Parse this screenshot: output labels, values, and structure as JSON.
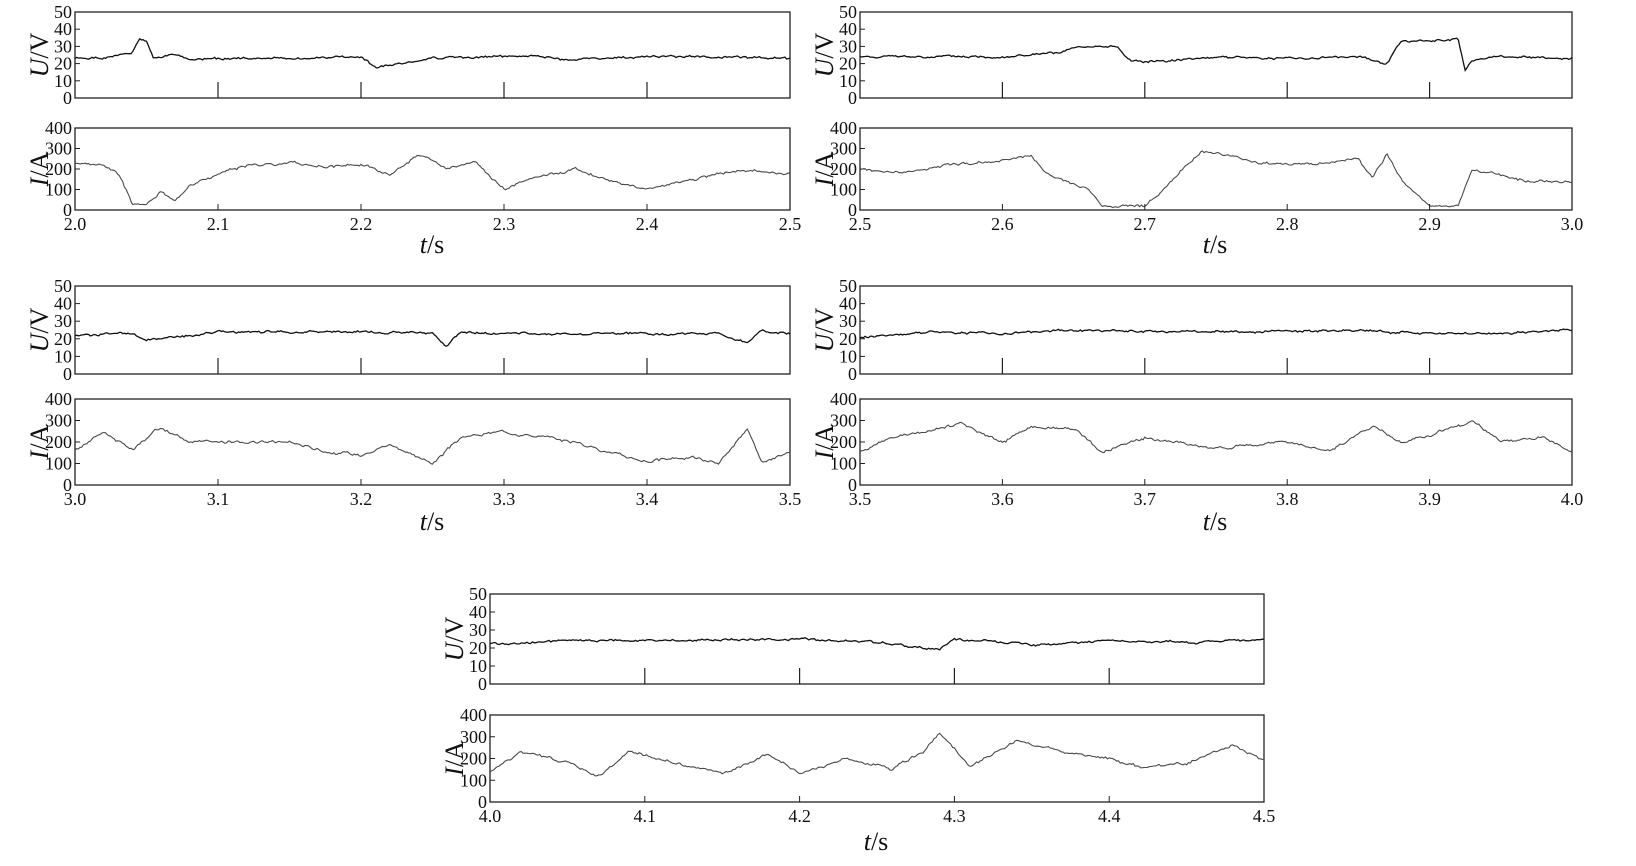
{
  "figure": {
    "axis_y_voltage": "U/V",
    "axis_y_current": "I/A",
    "axis_x": "t/s",
    "colors": {
      "voltage": "#111111",
      "current": "#4a4a4a",
      "frame": "#222222"
    }
  },
  "chart_data": [
    {
      "type": "line",
      "series": [
        {
          "name": "U/V",
          "unit": "V",
          "ylim": [
            0,
            50
          ],
          "yticks": [
            0,
            10,
            20,
            30,
            40,
            50
          ],
          "x": [
            2.0,
            2.02,
            2.04,
            2.045,
            2.05,
            2.055,
            2.07,
            2.08,
            2.1,
            2.15,
            2.2,
            2.21,
            2.25,
            2.3,
            2.33,
            2.34,
            2.4,
            2.45,
            2.5
          ],
          "y": [
            23,
            23,
            26,
            34,
            32,
            23,
            26,
            22,
            23,
            23,
            24,
            18,
            23,
            24,
            24,
            22,
            24,
            24,
            23
          ]
        },
        {
          "name": "I/A",
          "unit": "A",
          "ylim": [
            0,
            400
          ],
          "yticks": [
            0,
            100,
            200,
            300,
            400
          ],
          "x": [
            2.0,
            2.02,
            2.03,
            2.04,
            2.05,
            2.06,
            2.07,
            2.08,
            2.1,
            2.12,
            2.15,
            2.18,
            2.2,
            2.22,
            2.24,
            2.26,
            2.28,
            2.3,
            2.32,
            2.35,
            2.38,
            2.4,
            2.43,
            2.46,
            2.5
          ],
          "y": [
            230,
            220,
            180,
            30,
            25,
            90,
            40,
            130,
            170,
            220,
            230,
            210,
            225,
            170,
            270,
            200,
            230,
            100,
            160,
            200,
            130,
            100,
            150,
            190,
            180
          ]
        }
      ],
      "xlim": [
        2.0,
        2.5
      ],
      "xticks": [
        2.0,
        2.1,
        2.2,
        2.3,
        2.4,
        2.5
      ],
      "xlabel": "t/s"
    },
    {
      "type": "line",
      "series": [
        {
          "name": "U/V",
          "unit": "V",
          "ylim": [
            0,
            50
          ],
          "yticks": [
            0,
            10,
            20,
            30,
            40,
            50
          ],
          "x": [
            2.5,
            2.55,
            2.6,
            2.64,
            2.65,
            2.68,
            2.69,
            2.7,
            2.75,
            2.8,
            2.85,
            2.87,
            2.875,
            2.88,
            2.9,
            2.92,
            2.925,
            2.93,
            2.95,
            3.0
          ],
          "y": [
            24,
            24,
            24,
            26,
            29,
            30,
            22,
            21,
            24,
            23,
            24,
            20,
            27,
            33,
            33,
            34,
            16,
            22,
            24,
            23
          ]
        },
        {
          "name": "I/A",
          "unit": "A",
          "ylim": [
            0,
            400
          ],
          "yticks": [
            0,
            100,
            200,
            300,
            400
          ],
          "x": [
            2.5,
            2.53,
            2.56,
            2.6,
            2.62,
            2.63,
            2.64,
            2.66,
            2.67,
            2.7,
            2.72,
            2.74,
            2.78,
            2.82,
            2.85,
            2.86,
            2.87,
            2.88,
            2.89,
            2.9,
            2.92,
            2.93,
            2.95,
            2.97,
            3.0
          ],
          "y": [
            200,
            180,
            220,
            240,
            270,
            180,
            150,
            100,
            20,
            20,
            150,
            290,
            230,
            220,
            250,
            150,
            270,
            150,
            80,
            20,
            20,
            200,
            170,
            140,
            140
          ]
        }
      ],
      "xlim": [
        2.5,
        3.0
      ],
      "xticks": [
        2.5,
        2.6,
        2.7,
        2.8,
        2.9,
        3.0
      ],
      "xlabel": "t/s"
    },
    {
      "type": "line",
      "series": [
        {
          "name": "U/V",
          "unit": "V",
          "ylim": [
            0,
            50
          ],
          "yticks": [
            0,
            10,
            20,
            30,
            40,
            50
          ],
          "x": [
            3.0,
            3.04,
            3.05,
            3.1,
            3.2,
            3.25,
            3.26,
            3.27,
            3.3,
            3.4,
            3.45,
            3.47,
            3.48,
            3.5
          ],
          "y": [
            22,
            23,
            19,
            24,
            24,
            23,
            16,
            24,
            23,
            23,
            23,
            18,
            24,
            23
          ]
        },
        {
          "name": "I/A",
          "unit": "A",
          "ylim": [
            0,
            400
          ],
          "yticks": [
            0,
            100,
            200,
            300,
            400
          ],
          "x": [
            3.0,
            3.02,
            3.04,
            3.06,
            3.08,
            3.1,
            3.15,
            3.18,
            3.2,
            3.22,
            3.25,
            3.27,
            3.3,
            3.35,
            3.38,
            3.4,
            3.43,
            3.45,
            3.47,
            3.48,
            3.5
          ],
          "y": [
            160,
            250,
            160,
            270,
            200,
            200,
            200,
            150,
            140,
            190,
            100,
            220,
            250,
            200,
            140,
            110,
            130,
            100,
            260,
            100,
            150
          ]
        }
      ],
      "xlim": [
        3.0,
        3.5
      ],
      "xticks": [
        3.0,
        3.1,
        3.2,
        3.3,
        3.4,
        3.5
      ],
      "xlabel": "t/s"
    },
    {
      "type": "line",
      "series": [
        {
          "name": "U/V",
          "unit": "V",
          "ylim": [
            0,
            50
          ],
          "yticks": [
            0,
            10,
            20,
            30,
            40,
            50
          ],
          "x": [
            3.5,
            3.55,
            3.6,
            3.65,
            3.7,
            3.8,
            3.85,
            3.9,
            3.95,
            4.0
          ],
          "y": [
            21,
            24,
            23,
            25,
            24,
            24,
            25,
            23,
            23,
            25
          ]
        },
        {
          "name": "I/A",
          "unit": "A",
          "ylim": [
            0,
            400
          ],
          "yticks": [
            0,
            100,
            200,
            300,
            400
          ],
          "x": [
            3.5,
            3.52,
            3.55,
            3.57,
            3.6,
            3.62,
            3.65,
            3.67,
            3.7,
            3.75,
            3.8,
            3.83,
            3.86,
            3.88,
            3.9,
            3.93,
            3.95,
            3.98,
            4.0
          ],
          "y": [
            150,
            220,
            250,
            290,
            200,
            270,
            260,
            150,
            220,
            170,
            200,
            160,
            270,
            200,
            230,
            300,
            200,
            220,
            150
          ]
        }
      ],
      "xlim": [
        3.5,
        4.0
      ],
      "xticks": [
        3.5,
        3.6,
        3.7,
        3.8,
        3.9,
        4.0
      ],
      "xlabel": "t/s"
    },
    {
      "type": "line",
      "series": [
        {
          "name": "U/V",
          "unit": "V",
          "ylim": [
            0,
            50
          ],
          "yticks": [
            0,
            10,
            20,
            30,
            40,
            50
          ],
          "x": [
            4.0,
            4.05,
            4.1,
            4.2,
            4.25,
            4.29,
            4.3,
            4.35,
            4.4,
            4.45,
            4.5
          ],
          "y": [
            22,
            24,
            24,
            25,
            23,
            19,
            25,
            22,
            24,
            23,
            25
          ]
        },
        {
          "name": "I/A",
          "unit": "A",
          "ylim": [
            0,
            400
          ],
          "yticks": [
            0,
            100,
            200,
            300,
            400
          ],
          "x": [
            4.0,
            4.02,
            4.05,
            4.07,
            4.09,
            4.12,
            4.15,
            4.18,
            4.2,
            4.23,
            4.26,
            4.28,
            4.29,
            4.31,
            4.34,
            4.37,
            4.4,
            4.42,
            4.45,
            4.48,
            4.5
          ],
          "y": [
            140,
            230,
            180,
            120,
            230,
            180,
            130,
            220,
            130,
            200,
            150,
            230,
            320,
            160,
            280,
            230,
            200,
            160,
            180,
            260,
            190
          ]
        }
      ],
      "xlim": [
        4.0,
        4.5
      ],
      "xticks": [
        4.0,
        4.1,
        4.2,
        4.3,
        4.4,
        4.5
      ],
      "xlabel": "t/s"
    }
  ]
}
